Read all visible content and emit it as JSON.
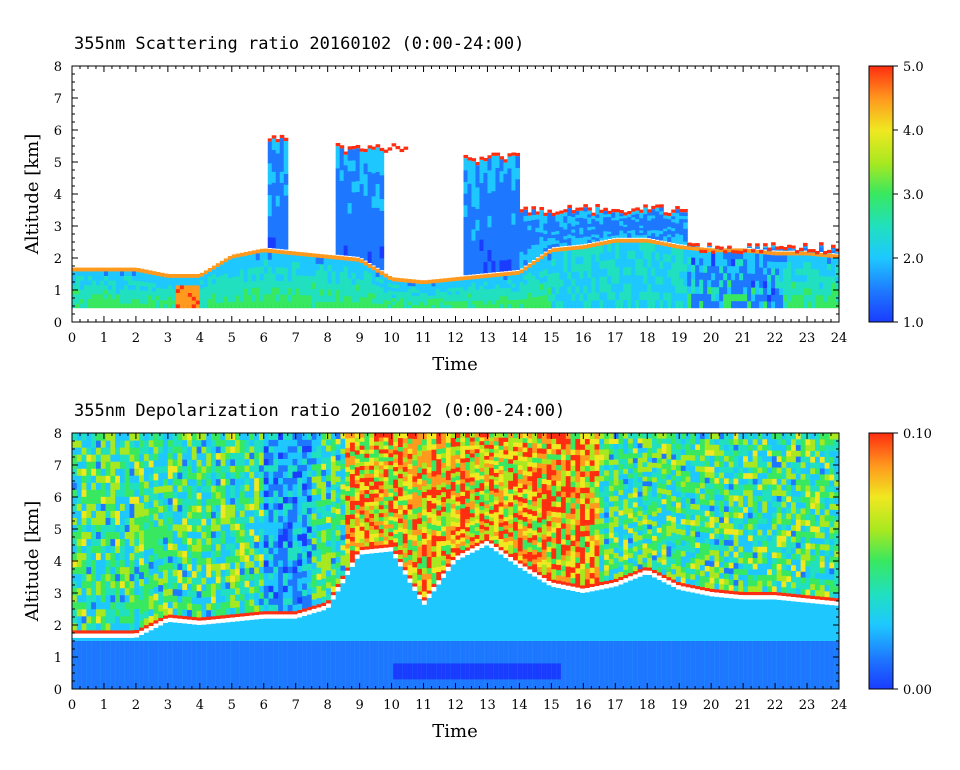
{
  "chart_data": [
    {
      "type": "heatmap",
      "title": "355nm Scattering ratio  20160102 (0:00-24:00)",
      "xlabel": "Time",
      "ylabel": "Altitude [km]",
      "xlim": [
        0,
        24
      ],
      "ylim": [
        0,
        8
      ],
      "x_ticks": [
        "0",
        "1",
        "2",
        "3",
        "4",
        "5",
        "6",
        "7",
        "8",
        "9",
        "10",
        "11",
        "12",
        "13",
        "14",
        "15",
        "16",
        "17",
        "18",
        "19",
        "20",
        "21",
        "22",
        "23",
        "24"
      ],
      "y_ticks": [
        "0",
        "1",
        "2",
        "3",
        "4",
        "5",
        "6",
        "7",
        "8"
      ],
      "colorbar": {
        "min": 1.0,
        "max": 5.0,
        "tick_labels": [
          "1.0",
          "2.0",
          "3.0",
          "4.0",
          "5.0"
        ],
        "tick_values": [
          1.0,
          2.0,
          3.0,
          4.0,
          5.0
        ]
      },
      "colormap": [
        "#1a3cff",
        "#1e78ff",
        "#1ec8ff",
        "#20e0c0",
        "#38e860",
        "#a8e820",
        "#f0e820",
        "#ff9a1e",
        "#ff2e10"
      ],
      "features": {
        "boundary_layer": {
          "x_range": [
            0,
            24
          ],
          "top_km": [
            1.6,
            1.6,
            1.6,
            1.4,
            1.4,
            2.0,
            2.2,
            2.1,
            2.0,
            1.9,
            1.3,
            1.2,
            1.3,
            1.4,
            1.5,
            2.2,
            2.3,
            2.5,
            2.5,
            2.3,
            2.2,
            2.2,
            2.1,
            2.1,
            2.0
          ]
        },
        "surface_layer_km": 0.45,
        "cloud_tops_km": [
          {
            "x": [
              6.1,
              6.7
            ],
            "top": 5.8
          },
          {
            "x": [
              8.2,
              10.5
            ],
            "top": 5.5
          },
          {
            "x": [
              12.2,
              14.0
            ],
            "top": 5.2
          },
          {
            "x": [
              14.0,
              19.3
            ],
            "top": 3.6
          },
          {
            "x": [
              19.3,
              24.0
            ],
            "top": 2.4
          }
        ]
      }
    },
    {
      "type": "heatmap",
      "title": "355nm Depolarization ratio  20160102 (0:00-24:00)",
      "xlabel": "Time",
      "ylabel": "Altitude [km]",
      "xlim": [
        0,
        24
      ],
      "ylim": [
        0,
        8
      ],
      "x_ticks": [
        "0",
        "1",
        "2",
        "3",
        "4",
        "5",
        "6",
        "7",
        "8",
        "9",
        "10",
        "11",
        "12",
        "13",
        "14",
        "15",
        "16",
        "17",
        "18",
        "19",
        "20",
        "21",
        "22",
        "23",
        "24"
      ],
      "y_ticks": [
        "0",
        "1",
        "2",
        "3",
        "4",
        "5",
        "6",
        "7",
        "8"
      ],
      "colorbar": {
        "min": 0.0,
        "max": 0.1,
        "tick_labels": [
          "0.00",
          "0.10"
        ],
        "tick_values": [
          0.0,
          0.1
        ]
      },
      "colormap": [
        "#1a3cff",
        "#1e78ff",
        "#1ec8ff",
        "#20e0c0",
        "#38e860",
        "#a8e820",
        "#f0e820",
        "#ff9a1e",
        "#ff2e10"
      ],
      "features": {
        "boundary_layer_top_km": [
          1.6,
          1.6,
          1.6,
          2.1,
          2.0,
          2.1,
          2.2,
          2.2,
          2.5,
          4.2,
          4.3,
          2.6,
          4.0,
          4.5,
          3.8,
          3.2,
          3.0,
          3.2,
          3.6,
          3.1,
          2.9,
          2.8,
          2.8,
          2.7,
          2.6
        ],
        "low_depol_band_km": [
          0.3,
          0.8
        ],
        "noise_above_km": 4.0
      }
    }
  ]
}
